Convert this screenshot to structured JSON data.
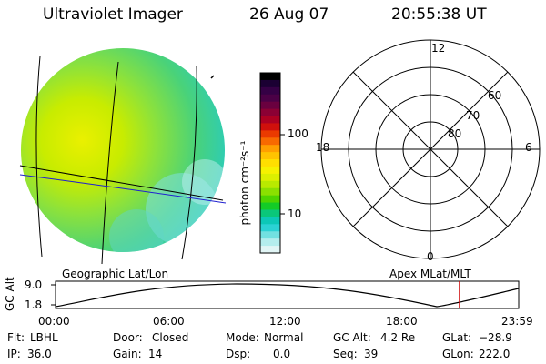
{
  "header": {
    "instrument": "Ultraviolet Imager",
    "date": "26 Aug 07",
    "time": "20:55:38 UT"
  },
  "image_panel": {
    "label": "Geographic Lat/Lon"
  },
  "colorbar": {
    "units_label": "photon cm⁻²s⁻¹",
    "ticks": [
      "100",
      "10"
    ],
    "colors": [
      "#000000",
      "#1b0033",
      "#350045",
      "#4b0046",
      "#6a003f",
      "#8b0034",
      "#ad0022",
      "#d0100c",
      "#ea3a00",
      "#f86a00",
      "#ff9f00",
      "#ffc300",
      "#ffdf00",
      "#f6f200",
      "#dcf000",
      "#b9ea00",
      "#8be000",
      "#4fd400",
      "#13cc27",
      "#0ac77a",
      "#0cc8b7",
      "#2bd2d4",
      "#72e1e1",
      "#b4eded",
      "#e1f5f5"
    ]
  },
  "polar_panel": {
    "label": "Apex MLat/MLT",
    "mlt_labels": [
      "12",
      "6",
      "0",
      "18"
    ],
    "lat_labels": [
      "60",
      "70",
      "80"
    ]
  },
  "altitude_plot": {
    "ylabel": "GC Alt",
    "yticks": [
      "9.0",
      "1.8"
    ],
    "xticks": [
      "00:00",
      "06:00",
      "12:00",
      "18:00",
      "23:59"
    ],
    "marker_color": "#cc0000"
  },
  "status": {
    "row1": [
      {
        "key": "Flt:",
        "value": "LBHL"
      },
      {
        "key": "Door:",
        "value": "Closed"
      },
      {
        "key": "Mode:",
        "value": "Normal"
      },
      {
        "key": "GC Alt:",
        "value": "4.2 Re"
      },
      {
        "key": "GLat:",
        "value": "−28.9"
      }
    ],
    "row2": [
      {
        "key": "IP:",
        "value": "36.0"
      },
      {
        "key": "Gain:",
        "value": "14"
      },
      {
        "key": "Dsp:",
        "value": "0.0"
      },
      {
        "key": "Seq:",
        "value": "39"
      },
      {
        "key": "GLon:",
        "value": "222.0"
      }
    ]
  }
}
